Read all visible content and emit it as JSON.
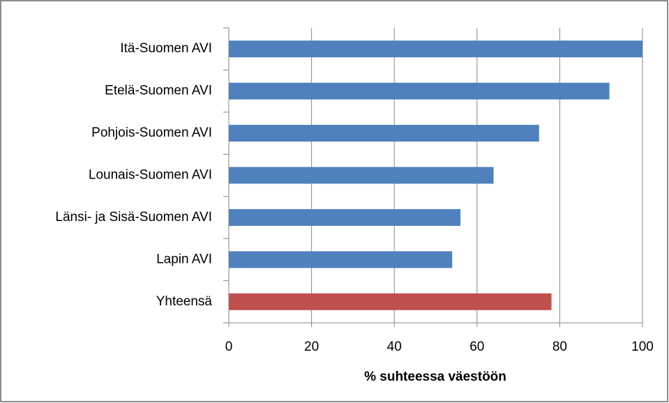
{
  "chart_data": {
    "type": "barh",
    "categories": [
      "Itä-Suomen AVI",
      "Etelä-Suomen AVI",
      "Pohjois-Suomen AVI",
      "Lounais-Suomen AVI",
      "Länsi- ja Sisä-Suomen AVI",
      "Lapin AVI",
      "Yhteensä"
    ],
    "values": [
      100,
      92,
      75,
      64,
      56,
      54,
      78
    ],
    "colors": [
      "#4f81bd",
      "#4f81bd",
      "#4f81bd",
      "#4f81bd",
      "#4f81bd",
      "#4f81bd",
      "#c0504d"
    ],
    "xlabel": "% suhteessa väestöön",
    "xlim": [
      0,
      100
    ],
    "xticks": [
      0,
      20,
      40,
      60,
      80,
      100
    ],
    "grid": true
  }
}
